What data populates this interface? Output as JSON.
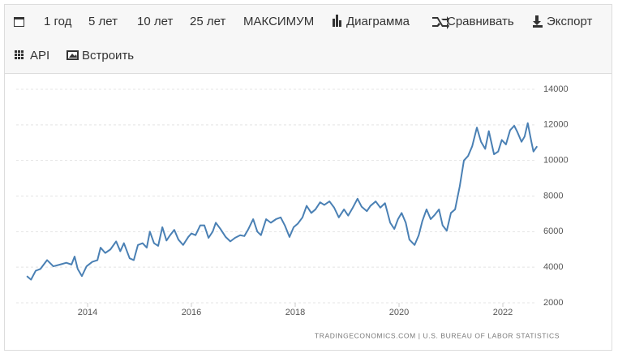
{
  "toolbar": {
    "items": [
      "1 год",
      "5 лет",
      "10 лет",
      "25 лет",
      "МАКСИМУМ",
      "Диаграмма",
      "Сравнивать",
      "Экспорт",
      "API",
      "Встроить"
    ]
  },
  "chart_data": {
    "type": "line",
    "source": "TRADINGECONOMICS.COM  |  U.S. BUREAU OF LABOR STATISTICS",
    "x": [
      2012.83,
      2012.91,
      2013.0,
      2013.09,
      2013.22,
      2013.34,
      2013.47,
      2013.59,
      2013.69,
      2013.75,
      2013.81,
      2013.89,
      2013.98,
      2014.09,
      2014.19,
      2014.25,
      2014.34,
      2014.44,
      2014.55,
      2014.63,
      2014.7,
      2014.81,
      2014.89,
      2014.97,
      2015.06,
      2015.14,
      2015.2,
      2015.28,
      2015.36,
      2015.44,
      2015.52,
      2015.59,
      2015.67,
      2015.75,
      2015.84,
      2015.94,
      2016.0,
      2016.08,
      2016.17,
      2016.25,
      2016.33,
      2016.41,
      2016.47,
      2016.56,
      2016.66,
      2016.75,
      2016.84,
      2016.94,
      2017.02,
      2017.09,
      2017.19,
      2017.27,
      2017.34,
      2017.44,
      2017.53,
      2017.63,
      2017.72,
      2017.8,
      2017.89,
      2017.97,
      2018.05,
      2018.14,
      2018.22,
      2018.31,
      2018.39,
      2018.48,
      2018.56,
      2018.66,
      2018.75,
      2018.84,
      2018.94,
      2019.02,
      2019.11,
      2019.2,
      2019.28,
      2019.38,
      2019.45,
      2019.55,
      2019.64,
      2019.73,
      2019.83,
      2019.91,
      2019.98,
      2020.05,
      2020.13,
      2020.2,
      2020.3,
      2020.38,
      2020.45,
      2020.53,
      2020.61,
      2020.69,
      2020.77,
      2020.84,
      2020.92,
      2021.0,
      2021.08,
      2021.17,
      2021.25,
      2021.33,
      2021.41,
      2021.5,
      2021.58,
      2021.66,
      2021.73,
      2021.83,
      2021.91,
      2021.98,
      2022.06,
      2022.14,
      2022.22,
      2022.28,
      2022.36,
      2022.42,
      2022.48,
      2022.55,
      2022.59,
      2022.66
    ],
    "series": [
      {
        "color": "#4a80b4",
        "values": [
          3500,
          3300,
          3800,
          3900,
          4400,
          4050,
          4150,
          4250,
          4150,
          4600,
          3900,
          3500,
          4050,
          4300,
          4400,
          5100,
          4800,
          5000,
          5450,
          4900,
          5350,
          4500,
          4400,
          5250,
          5350,
          5100,
          6000,
          5350,
          5200,
          6250,
          5500,
          5800,
          6100,
          5550,
          5250,
          5700,
          5900,
          5800,
          6350,
          6350,
          5650,
          6000,
          6500,
          6150,
          5700,
          5450,
          5650,
          5800,
          5750,
          6100,
          6700,
          6000,
          5800,
          6700,
          6500,
          6700,
          6800,
          6350,
          5700,
          6250,
          6450,
          6800,
          7450,
          7050,
          7250,
          7650,
          7500,
          7700,
          7350,
          6800,
          7250,
          6900,
          7350,
          7850,
          7400,
          7150,
          7450,
          7700,
          7350,
          7600,
          6500,
          6150,
          6700,
          7050,
          6500,
          5550,
          5250,
          5800,
          6600,
          7250,
          6700,
          6950,
          7250,
          6350,
          6050,
          7050,
          7250,
          8550,
          10000,
          10250,
          10800,
          11850,
          11050,
          10650,
          11650,
          10350,
          10500,
          11150,
          10900,
          11700,
          11950,
          11600,
          11050,
          11350,
          12100,
          11050,
          10500,
          10800
        ]
      }
    ],
    "xlim": [
      2012.6,
      2022.75
    ],
    "xticks": [
      2014,
      2016,
      2018,
      2020,
      2022
    ],
    "ylim": [
      2000,
      14000
    ],
    "yticks": [
      2000,
      4000,
      6000,
      8000,
      10000,
      12000,
      14000
    ],
    "grid": true
  }
}
